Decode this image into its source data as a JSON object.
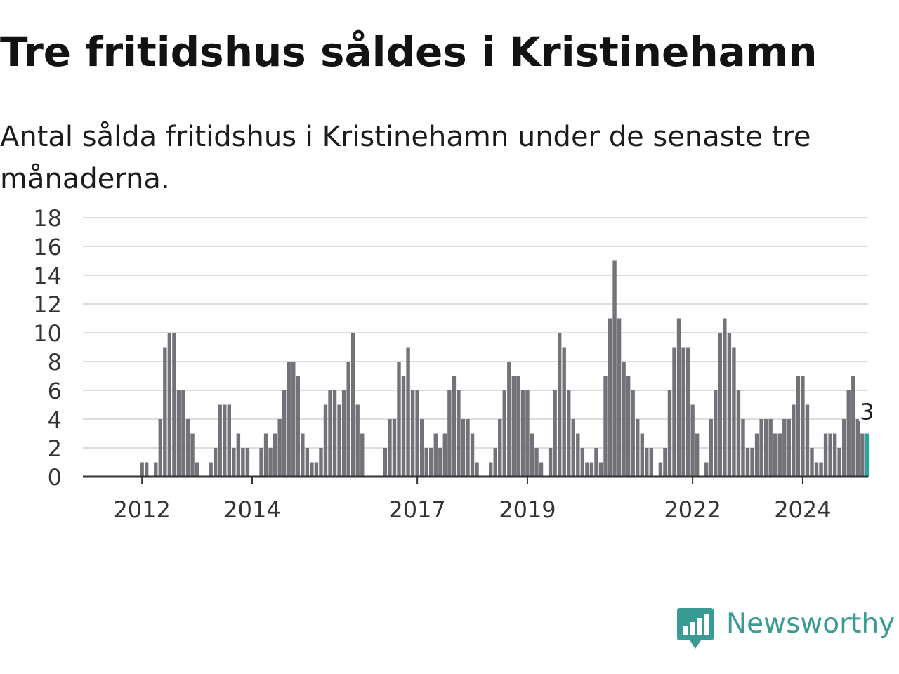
{
  "title": "Tre fritidshus såldes i Kristinehamn",
  "subtitle": "Antal sålda fritidshus i Kristinehamn under de senaste tre månaderna.",
  "brand": "Newsworthy",
  "colors": {
    "bar": "#737278",
    "highlight": "#29a59a",
    "grid": "#dddddd",
    "axis": "#333333",
    "brand": "#3a9a94"
  },
  "chart_data": {
    "type": "bar",
    "title": "Tre fritidshus såldes i Kristinehamn",
    "subtitle": "Antal sålda fritidshus i Kristinehamn under de senaste tre månaderna.",
    "xlabel": "",
    "ylabel": "",
    "ylim": [
      0,
      18
    ],
    "yticks": [
      0,
      2,
      4,
      6,
      8,
      10,
      12,
      14,
      16,
      18
    ],
    "xticks": [
      {
        "label": "2012",
        "at": "2012-01"
      },
      {
        "label": "2014",
        "at": "2014-01"
      },
      {
        "label": "2017",
        "at": "2017-01"
      },
      {
        "label": "2019",
        "at": "2019-01"
      },
      {
        "label": "2022",
        "at": "2022-01"
      },
      {
        "label": "2024",
        "at": "2024-01"
      }
    ],
    "grid": true,
    "legend": "none",
    "start_month": "2011-08",
    "values": [
      0,
      0,
      0,
      0,
      0,
      1,
      1,
      0,
      1,
      4,
      9,
      10,
      10,
      6,
      6,
      4,
      3,
      1,
      0,
      0,
      1,
      2,
      5,
      5,
      5,
      2,
      3,
      2,
      2,
      0,
      0,
      2,
      3,
      2,
      3,
      4,
      6,
      8,
      8,
      7,
      3,
      2,
      1,
      1,
      2,
      5,
      6,
      6,
      5,
      6,
      8,
      10,
      5,
      3,
      0,
      0,
      0,
      0,
      2,
      4,
      4,
      8,
      7,
      9,
      6,
      6,
      4,
      2,
      2,
      3,
      2,
      3,
      6,
      7,
      6,
      4,
      4,
      3,
      1,
      0,
      0,
      1,
      2,
      4,
      6,
      8,
      7,
      7,
      6,
      6,
      3,
      2,
      1,
      0,
      2,
      6,
      10,
      9,
      6,
      4,
      3,
      2,
      1,
      1,
      2,
      1,
      7,
      11,
      15,
      11,
      8,
      7,
      6,
      4,
      3,
      2,
      2,
      0,
      1,
      2,
      6,
      9,
      11,
      9,
      9,
      5,
      3,
      0,
      1,
      4,
      6,
      10,
      11,
      10,
      9,
      6,
      4,
      2,
      2,
      3,
      4,
      4,
      4,
      3,
      3,
      4,
      4,
      5,
      7,
      7,
      5,
      2,
      1,
      1,
      3,
      3,
      3,
      2,
      4,
      6,
      7,
      4,
      3
    ],
    "highlight": {
      "month": "2025-03",
      "value": 3,
      "label": "3"
    }
  }
}
